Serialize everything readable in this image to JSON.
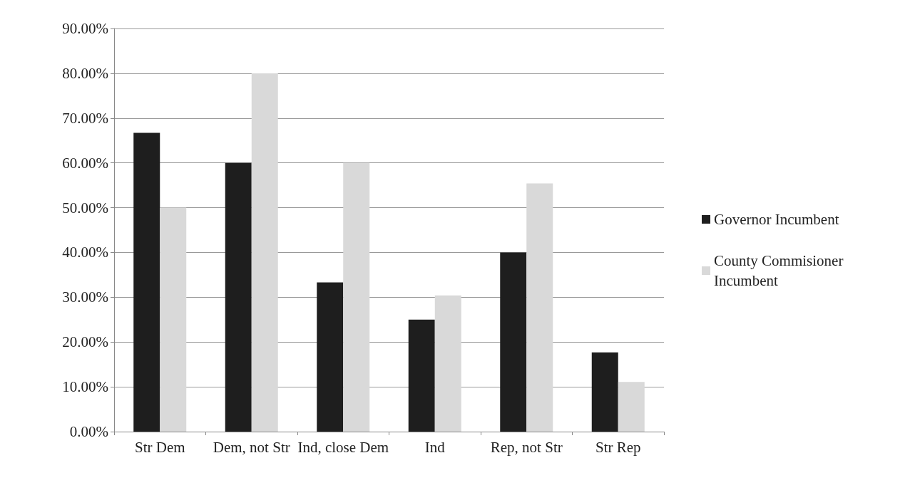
{
  "chart_data": {
    "type": "bar",
    "categories": [
      "Str Dem",
      "Dem, not Str",
      "Ind, close Dem",
      "Ind",
      "Rep, not Str",
      "Str Rep"
    ],
    "series": [
      {
        "name": "Governor Incumbent",
        "color": "#1e1e1e",
        "values": [
          66.7,
          60,
          33.3,
          25,
          40,
          17.7
        ]
      },
      {
        "name": "County Commisioner Incumbent",
        "color": "#d9d9d9",
        "values": [
          50,
          80,
          60,
          30.4,
          55.4,
          11.1
        ]
      }
    ],
    "ylim": [
      0,
      90
    ],
    "yticks": [
      {
        "value": 0,
        "label": "0.00%"
      },
      {
        "value": 10,
        "label": "10.00%"
      },
      {
        "value": 20,
        "label": "20.00%"
      },
      {
        "value": 30,
        "label": "30.00%"
      },
      {
        "value": 40,
        "label": "40.00%"
      },
      {
        "value": 50,
        "label": "50.00%"
      },
      {
        "value": 60,
        "label": "60.00%"
      },
      {
        "value": 70,
        "label": "70.00%"
      },
      {
        "value": 80,
        "label": "80.00%"
      },
      {
        "value": 90,
        "label": "90.00%"
      }
    ],
    "grid": "y",
    "legend": "right"
  }
}
